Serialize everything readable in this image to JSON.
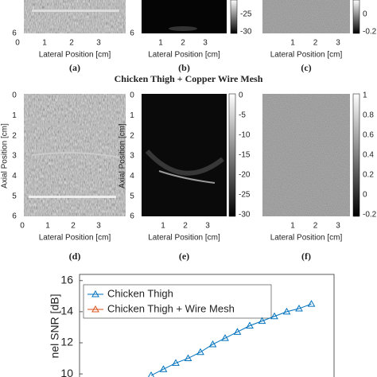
{
  "top_row": {
    "a": {
      "label": "(a)",
      "yticks": [
        "6"
      ],
      "xticks": [
        "0",
        "1",
        "2",
        "3"
      ],
      "xlabel": "Lateral Position [cm]"
    },
    "b": {
      "label": "(b)",
      "yticks": [
        "6"
      ],
      "xticks": [
        "1",
        "2",
        "3"
      ],
      "xlabel": "Lateral Position [cm]",
      "colorbar": [
        "-25",
        "-30"
      ]
    },
    "c": {
      "label": "(c)",
      "xticks": [
        "1",
        "2",
        "3"
      ],
      "xlabel": "Lateral Position [cm]",
      "colorbar": [
        "0",
        "-0.2"
      ]
    }
  },
  "section_title": "Chicken Thigh + Copper Wire Mesh",
  "middle_row": {
    "d": {
      "label": "(d)",
      "ylabel": "Axial Position [cm]",
      "yticks": [
        "0",
        "1",
        "2",
        "3",
        "4",
        "5",
        "6"
      ],
      "xticks": [
        "0",
        "1",
        "2",
        "3"
      ],
      "xlabel": "Lateral Position [cm]"
    },
    "e": {
      "label": "(e)",
      "ylabel": "Axial Position [cm]",
      "yticks": [
        "0",
        "1",
        "2",
        "3",
        "4",
        "5",
        "6"
      ],
      "xticks": [
        "1",
        "2",
        "3"
      ],
      "xlabel": "Lateral Position [cm]",
      "colorbar": [
        "0",
        "-5",
        "-10",
        "-15",
        "-20",
        "-25",
        "-30"
      ]
    },
    "f": {
      "label": "(f)",
      "xticks": [
        "1",
        "2",
        "3"
      ],
      "xlabel": "Lateral Position [cm]",
      "colorbar": [
        "1",
        "0.8",
        "0.6",
        "0.4",
        "0.2",
        "0",
        "-0.2"
      ]
    }
  },
  "plot": {
    "ylabel": "nel SNR [dB]",
    "ylim": [
      9.8,
      16.4
    ],
    "yticks": [
      10,
      12,
      14,
      16
    ],
    "series": [
      {
        "name": "Chicken Thigh",
        "color": "#0072bd",
        "values": [
          9.9,
          10.3,
          10.7,
          11.0,
          11.4,
          11.9,
          12.3,
          12.7,
          13.1,
          13.4,
          13.7,
          14.0,
          14.2,
          14.5
        ]
      },
      {
        "name": "Chicken Thigh + Wire Mesh",
        "color": "#d95319",
        "values": []
      }
    ]
  }
}
